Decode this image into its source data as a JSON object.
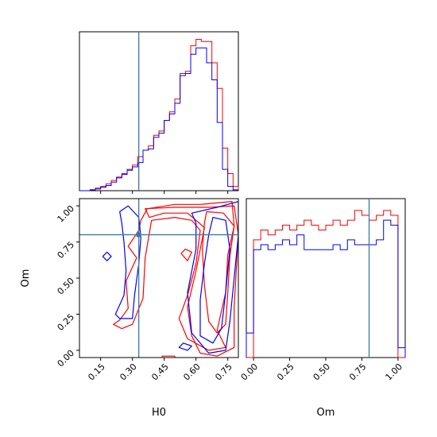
{
  "chart_data": {
    "type": "corner",
    "parameters": [
      "H0",
      "Om"
    ],
    "truths": {
      "H0": 0.33,
      "Om": 0.8
    },
    "colors": {
      "red": "#ff0000",
      "blue": "#0000ff",
      "truth": "#3a78a8"
    },
    "axes": {
      "H0": {
        "label": "H0",
        "range": [
          0.05,
          0.8
        ],
        "ticks": [
          0.15,
          0.3,
          0.45,
          0.6,
          0.75
        ],
        "tick_labels": [
          "0.15",
          "0.30",
          "0.45",
          "0.60",
          "0.75"
        ]
      },
      "Om": {
        "label": "Om",
        "range": [
          -0.05,
          1.05
        ],
        "ticks": [
          0.0,
          0.25,
          0.5,
          0.75,
          1.0
        ],
        "tick_labels": [
          "0.00",
          "0.25",
          "0.50",
          "0.75",
          "1.00"
        ]
      }
    },
    "hist_H0": {
      "bin_edges": [
        0.05,
        0.075,
        0.1,
        0.125,
        0.15,
        0.175,
        0.2,
        0.225,
        0.25,
        0.275,
        0.3,
        0.325,
        0.35,
        0.375,
        0.4,
        0.425,
        0.45,
        0.475,
        0.5,
        0.525,
        0.55,
        0.575,
        0.6,
        0.625,
        0.65,
        0.675,
        0.7,
        0.725,
        0.75,
        0.775,
        0.8
      ],
      "series": [
        {
          "color": "red",
          "values": [
            0,
            0,
            0.2,
            0.6,
            1.0,
            1.6,
            2.4,
            3.2,
            4.0,
            5.0,
            6.0,
            8.0,
            9.5,
            10.5,
            13.0,
            14.0,
            16.5,
            18.5,
            21.5,
            27.5,
            28.0,
            34.0,
            35.5,
            35.0,
            35.0,
            30.0,
            24.0,
            10.0,
            4.0,
            1.0
          ]
        },
        {
          "color": "blue",
          "values": [
            0,
            0,
            0.2,
            0.4,
            0.8,
            1.2,
            2.0,
            3.0,
            3.8,
            4.8,
            5.6,
            6.6,
            9.5,
            9.8,
            12.5,
            13.5,
            16.5,
            18.0,
            20.5,
            27.0,
            27.5,
            32.0,
            33.5,
            33.5,
            30.0,
            26.0,
            16.0,
            5.0,
            1.0,
            0.2
          ]
        }
      ]
    },
    "hist_Om": {
      "bin_edges": [
        -0.05,
        0.0,
        0.05,
        0.1,
        0.15,
        0.2,
        0.25,
        0.3,
        0.35,
        0.4,
        0.45,
        0.5,
        0.55,
        0.6,
        0.65,
        0.7,
        0.75,
        0.8,
        0.85,
        0.9,
        0.95,
        1.0,
        1.05
      ],
      "series": [
        {
          "color": "red",
          "values": [
            0,
            24,
            26,
            25,
            26,
            27,
            26,
            27,
            28,
            27,
            26,
            27,
            28,
            27,
            28,
            30,
            29,
            28,
            29,
            30,
            29,
            0
          ]
        },
        {
          "color": "blue",
          "values": [
            5,
            22,
            23,
            22,
            23,
            24,
            23,
            25,
            22,
            22,
            22,
            22,
            23,
            22,
            24,
            23,
            23,
            23,
            24,
            28,
            27,
            2
          ]
        }
      ]
    },
    "contours": [
      {
        "color": "red",
        "level": 1,
        "points": [
          [
            0.25,
            0.15
          ],
          [
            0.21,
            0.18
          ],
          [
            0.24,
            0.21
          ],
          [
            0.28,
            0.29
          ],
          [
            0.27,
            0.48
          ],
          [
            0.32,
            0.64
          ],
          [
            0.28,
            0.72
          ],
          [
            0.33,
            0.83
          ],
          [
            0.34,
            0.9
          ],
          [
            0.37,
            0.98
          ],
          [
            0.5,
            1.01
          ],
          [
            0.62,
            1.01
          ],
          [
            0.77,
            1.03
          ],
          [
            0.78,
            0.86
          ],
          [
            0.75,
            0.66
          ],
          [
            0.74,
            0.4
          ],
          [
            0.7,
            0.14
          ],
          [
            0.74,
            0.02
          ],
          [
            0.66,
            0.0
          ],
          [
            0.56,
            0.08
          ],
          [
            0.52,
            0.22
          ],
          [
            0.56,
            0.38
          ],
          [
            0.6,
            0.6
          ],
          [
            0.62,
            0.83
          ],
          [
            0.58,
            0.9
          ],
          [
            0.5,
            0.92
          ],
          [
            0.39,
            0.9
          ],
          [
            0.36,
            0.64
          ],
          [
            0.35,
            0.36
          ],
          [
            0.3,
            0.18
          ]
        ]
      },
      {
        "color": "red",
        "level": 2,
        "points": [
          [
            0.36,
            0.98
          ],
          [
            0.5,
            0.99
          ],
          [
            0.66,
            0.99
          ],
          [
            0.78,
            1.0
          ],
          [
            0.8,
            0.8
          ],
          [
            0.79,
            0.55
          ],
          [
            0.78,
            0.3
          ],
          [
            0.78,
            0.02
          ],
          [
            0.7,
            -0.04
          ],
          [
            0.62,
            -0.02
          ],
          [
            0.58,
            0.1
          ],
          [
            0.56,
            0.3
          ],
          [
            0.6,
            0.55
          ],
          [
            0.64,
            0.85
          ],
          [
            0.56,
            0.95
          ],
          [
            0.45,
            0.95
          ],
          [
            0.38,
            0.92
          ]
        ]
      },
      {
        "color": "red",
        "level": 3,
        "points": [
          [
            0.65,
            0.96
          ],
          [
            0.73,
            0.95
          ],
          [
            0.78,
            0.86
          ],
          [
            0.76,
            0.65
          ],
          [
            0.75,
            0.4
          ],
          [
            0.74,
            0.18
          ],
          [
            0.7,
            0.12
          ],
          [
            0.66,
            0.2
          ],
          [
            0.64,
            0.45
          ],
          [
            0.63,
            0.7
          ],
          [
            0.64,
            0.88
          ]
        ]
      },
      {
        "color": "red",
        "level": 1,
        "points": [
          [
            0.53,
            0.67
          ],
          [
            0.56,
            0.62
          ],
          [
            0.58,
            0.68
          ],
          [
            0.55,
            0.7
          ]
        ]
      },
      {
        "color": "red",
        "level": 1,
        "points": [
          [
            0.44,
            -0.04
          ],
          [
            0.5,
            -0.04
          ],
          [
            0.5,
            -0.06
          ],
          [
            0.44,
            -0.06
          ]
        ]
      },
      {
        "color": "blue",
        "level": 1,
        "points": [
          [
            0.24,
            0.22
          ],
          [
            0.22,
            0.25
          ],
          [
            0.26,
            0.38
          ],
          [
            0.27,
            0.55
          ],
          [
            0.26,
            0.75
          ],
          [
            0.25,
            0.88
          ],
          [
            0.24,
            0.96
          ],
          [
            0.28,
            1.0
          ],
          [
            0.33,
            0.92
          ],
          [
            0.34,
            0.78
          ],
          [
            0.33,
            0.6
          ],
          [
            0.31,
            0.38
          ],
          [
            0.3,
            0.22
          ]
        ]
      },
      {
        "color": "blue",
        "level": 1,
        "points": [
          [
            0.58,
            0.95
          ],
          [
            0.7,
            0.99
          ],
          [
            0.8,
            1.03
          ],
          [
            0.8,
            0.8
          ],
          [
            0.78,
            0.5
          ],
          [
            0.76,
            0.2
          ],
          [
            0.74,
            0.0
          ],
          [
            0.66,
            -0.02
          ],
          [
            0.58,
            0.12
          ],
          [
            0.56,
            0.4
          ],
          [
            0.6,
            0.7
          ],
          [
            0.6,
            0.88
          ]
        ]
      },
      {
        "color": "blue",
        "level": 2,
        "points": [
          [
            0.68,
            0.92
          ],
          [
            0.74,
            0.9
          ],
          [
            0.76,
            0.7
          ],
          [
            0.74,
            0.4
          ],
          [
            0.72,
            0.15
          ],
          [
            0.68,
            0.05
          ],
          [
            0.62,
            0.1
          ],
          [
            0.62,
            0.35
          ],
          [
            0.64,
            0.6
          ],
          [
            0.66,
            0.8
          ]
        ]
      },
      {
        "color": "blue",
        "level": 1,
        "points": [
          [
            0.16,
            0.65
          ],
          [
            0.18,
            0.62
          ],
          [
            0.2,
            0.65
          ],
          [
            0.18,
            0.68
          ]
        ]
      },
      {
        "color": "blue",
        "level": 1,
        "points": [
          [
            0.52,
            0.02
          ],
          [
            0.56,
            0.0
          ],
          [
            0.58,
            0.03
          ],
          [
            0.54,
            0.05
          ]
        ]
      }
    ]
  }
}
